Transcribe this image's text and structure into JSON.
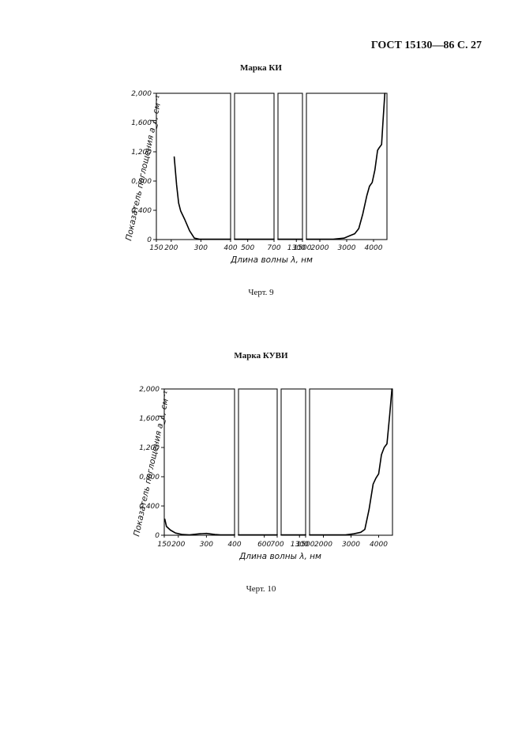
{
  "header": "ГОСТ 15130—86 С. 27",
  "chart_data": [
    {
      "type": "line",
      "title": "Марка КИ",
      "caption": "Черт. 9",
      "xlabel": "Длина волны λ, нм",
      "ylabel": "Показатель поглощения a_λ, см⁻¹",
      "ylim": [
        0,
        2.0
      ],
      "yticks": [
        "2,000",
        "1,600",
        "1,200",
        "0,800",
        "0,400",
        "0"
      ],
      "x_panels": [
        {
          "range": [
            150,
            400
          ],
          "ticks": [
            150,
            200,
            300,
            400
          ]
        },
        {
          "range": [
            400,
            700
          ],
          "ticks": [
            500,
            700
          ]
        },
        {
          "range": [
            700,
            1500
          ],
          "ticks": [
            1300,
            1500
          ]
        },
        {
          "range": [
            1500,
            4500
          ],
          "ticks": [
            2000,
            3000,
            4000
          ]
        }
      ],
      "series": [
        {
          "segments": [
            {
              "panel": 0,
              "points": [
                [
                  210,
                  1.13
                ],
                [
                  218,
                  0.75
                ],
                [
                  225,
                  0.5
                ],
                [
                  232,
                  0.39
                ],
                [
                  245,
                  0.28
                ],
                [
                  262,
                  0.12
                ],
                [
                  278,
                  0.02
                ],
                [
                  295,
                  0.005
                ],
                [
                  400,
                  0.005
                ]
              ]
            },
            {
              "panel": 1,
              "points": [
                [
                  400,
                  0.005
                ],
                [
                  700,
                  0.005
                ]
              ]
            },
            {
              "panel": 2,
              "points": [
                [
                  700,
                  0.005
                ],
                [
                  1500,
                  0.005
                ]
              ]
            },
            {
              "panel": 3,
              "points": [
                [
                  1500,
                  0.005
                ],
                [
                  2500,
                  0.005
                ],
                [
                  2900,
                  0.02
                ],
                [
                  3100,
                  0.05
                ],
                [
                  3300,
                  0.08
                ],
                [
                  3450,
                  0.15
                ],
                [
                  3600,
                  0.35
                ],
                [
                  3750,
                  0.6
                ],
                [
                  3850,
                  0.73
                ],
                [
                  3950,
                  0.78
                ],
                [
                  4050,
                  0.95
                ],
                [
                  4150,
                  1.22
                ],
                [
                  4200,
                  1.25
                ],
                [
                  4300,
                  1.3
                ],
                [
                  4350,
                  1.6
                ],
                [
                  4420,
                  2.0
                ]
              ]
            }
          ]
        }
      ]
    },
    {
      "type": "line",
      "title": "Марка КУВИ",
      "caption": "Черт. 10",
      "xlabel": "Длина волны λ, нм",
      "ylabel": "Показатель поглощения a_λ, см⁻¹",
      "ylim": [
        0,
        2.0
      ],
      "yticks": [
        "2,000",
        "1,600",
        "1,200",
        "0,800",
        "0,400",
        "0"
      ],
      "x_panels": [
        {
          "range": [
            150,
            400
          ],
          "ticks": [
            150,
            200,
            300,
            400
          ]
        },
        {
          "range": [
            400,
            700
          ],
          "ticks": [
            600,
            700
          ]
        },
        {
          "range": [
            700,
            1500
          ],
          "ticks": [
            1300,
            1500
          ]
        },
        {
          "range": [
            1500,
            4500
          ],
          "ticks": [
            2000,
            3000,
            4000
          ]
        }
      ],
      "series": [
        {
          "segments": [
            {
              "panel": 0,
              "points": [
                [
                  152,
                  0.22
                ],
                [
                  158,
                  0.12
                ],
                [
                  172,
                  0.07
                ],
                [
                  190,
                  0.03
                ],
                [
                  215,
                  0.01
                ],
                [
                  240,
                  0.005
                ],
                [
                  275,
                  0.02
                ],
                [
                  300,
                  0.025
                ],
                [
                  330,
                  0.01
                ],
                [
                  350,
                  0.005
                ],
                [
                  400,
                  0.005
                ]
              ]
            },
            {
              "panel": 1,
              "points": [
                [
                  400,
                  0.005
                ],
                [
                  700,
                  0.005
                ]
              ]
            },
            {
              "panel": 2,
              "points": [
                [
                  700,
                  0.005
                ],
                [
                  1500,
                  0.005
                ]
              ]
            },
            {
              "panel": 3,
              "points": [
                [
                  1500,
                  0.005
                ],
                [
                  2800,
                  0.005
                ],
                [
                  3100,
                  0.02
                ],
                [
                  3350,
                  0.04
                ],
                [
                  3500,
                  0.08
                ],
                [
                  3650,
                  0.35
                ],
                [
                  3800,
                  0.7
                ],
                [
                  3900,
                  0.78
                ],
                [
                  4000,
                  0.84
                ],
                [
                  4100,
                  1.1
                ],
                [
                  4200,
                  1.2
                ],
                [
                  4300,
                  1.25
                ],
                [
                  4400,
                  1.65
                ],
                [
                  4480,
                  2.0
                ]
              ]
            }
          ]
        }
      ]
    }
  ]
}
